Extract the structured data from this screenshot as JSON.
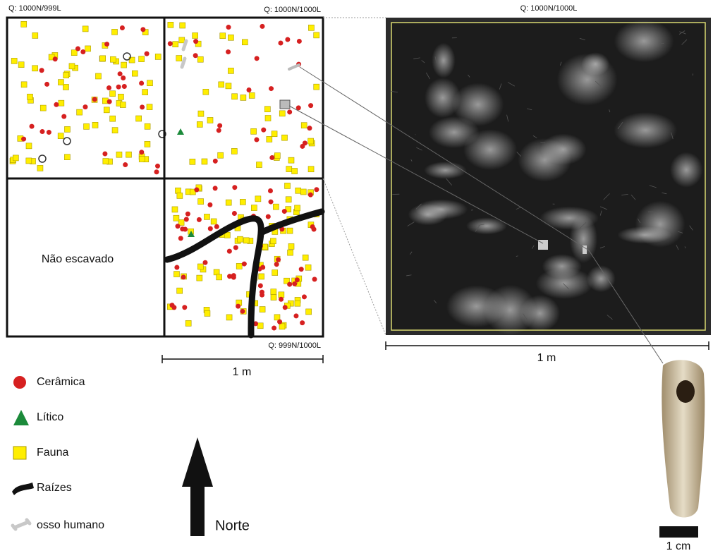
{
  "map": {
    "quadrants": [
      "Q: 1000N/999L",
      "Q: 1000N/1000L",
      "Q: 999N/1000L"
    ],
    "unexcavated": "Não escavado",
    "scale": "1 m"
  },
  "photo": {
    "label": "Q: 1000N/1000L",
    "scale": "1 m"
  },
  "legend": [
    "Cerâmica",
    "Lítico",
    "Fauna",
    "Raízes",
    "osso humano"
  ],
  "north": "Norte",
  "artifact_scale": "1 cm"
}
